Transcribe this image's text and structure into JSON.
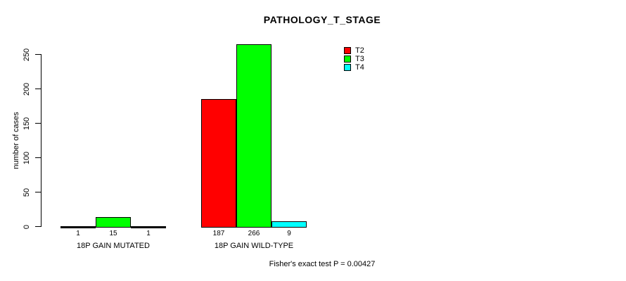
{
  "chart_data": {
    "type": "bar",
    "title": "PATHOLOGY_T_STAGE",
    "ylabel": "number of cases",
    "xlabel": "",
    "ylim": [
      0,
      250
    ],
    "yticks": [
      0,
      50,
      100,
      150,
      200,
      250
    ],
    "grid": false,
    "legend_position": "top-right",
    "categories": [
      "18P GAIN MUTATED",
      "18P GAIN WILD-TYPE"
    ],
    "series": [
      {
        "name": "T2",
        "color": "#ff0000",
        "values": [
          1,
          187
        ]
      },
      {
        "name": "T3",
        "color": "#00ff00",
        "values": [
          15,
          266
        ]
      },
      {
        "name": "T4",
        "color": "#00ffff",
        "values": [
          1,
          9
        ]
      }
    ],
    "bar_value_labels": [
      [
        1,
        15,
        1
      ],
      [
        187,
        266,
        9
      ]
    ],
    "annotation": "Fisher's exact test P = 0.00427",
    "axis_color": "#000000",
    "bar_border_color": "#000000"
  }
}
